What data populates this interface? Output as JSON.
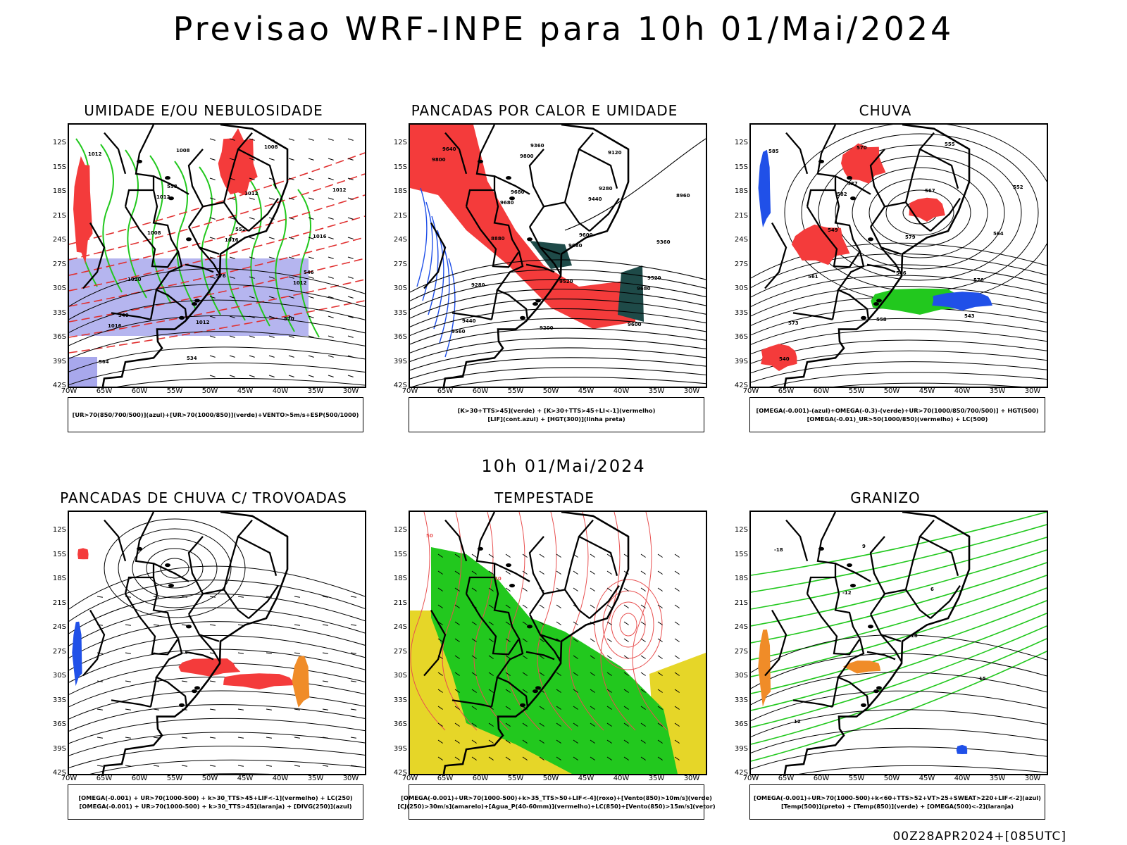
{
  "header": {
    "title": "Previsao WRF-INPE  para 10h 01/Mai/2024"
  },
  "mid_title": "10h 01/Mai/2024",
  "footer_code": "00Z28APR2024+[085UTC]",
  "lat_labels": [
    "12S",
    "15S",
    "18S",
    "21S",
    "24S",
    "27S",
    "30S",
    "33S",
    "36S",
    "39S",
    "42S"
  ],
  "lon_labels": [
    "70W",
    "65W",
    "60W",
    "55W",
    "50W",
    "45W",
    "40W",
    "35W",
    "30W"
  ],
  "panels": [
    {
      "title": "UMIDADE E/OU NEBULOSIDADE",
      "legend": [
        "[UR>70(850/700/500)](azul)+[UR>70(1000/850)](verde)+VENTO>5m/s+ESP(500/1000)"
      ],
      "labels": [
        "1012",
        "1012",
        "1016",
        "1012",
        "1016",
        "1008",
        "1012",
        "1016",
        "1020",
        "1012",
        "1008",
        "1012",
        "1008",
        "576",
        "570",
        "564",
        "558",
        "552",
        "546",
        "540",
        "534"
      ]
    },
    {
      "title": "PANCADAS POR CALOR E UMIDADE",
      "legend": [
        "[K>30+TTS>45](verde) + [K>30+TTS>45+LI<-1](vermelho)",
        "[LIF](cont.azul) + [HGT(300)](linha preta)"
      ],
      "labels": [
        "9800",
        "9680",
        "9680",
        "9680",
        "9560",
        "9800",
        "9440",
        "9360",
        "9280",
        "9200",
        "9120",
        "8960",
        "8880",
        "9520",
        "9600",
        "9640",
        "9680",
        "9600",
        "9520",
        "9440",
        "9360",
        "9280"
      ]
    },
    {
      "title": "CHUVA",
      "legend": [
        "[OMEGA(-0.001)-(azul)+OMEGA(-0.3)-(verde)+UR>70(1000/850/700/500)] + HGT(500)",
        "[OMEGA(-0.01)_UR>50(1000/850)(vermelho) + LC(500)"
      ],
      "labels": [
        "585",
        "582",
        "579",
        "576",
        "573",
        "570",
        "567",
        "564",
        "561",
        "558",
        "555",
        "552",
        "549",
        "546",
        "543",
        "540",
        "537"
      ]
    },
    {
      "title": "PANCADAS DE CHUVA C/ TROVOADAS",
      "legend": [
        "[OMEGA(-0.001) + UR>70(1000-500) + k>30_TTS>45+LIF<-1](vermelho) + LC(250)",
        "[OMEGA(-0.001) + UR>70(1000-500) + k>30_TTS>45](laranja) + [DIVG(250)](azul)"
      ],
      "labels": []
    },
    {
      "title": "TEMPESTADE",
      "legend": [
        "[OMEGA(-0.001)+UR>70(1000-500)+k>35_TTS>50+LIF<-4](roxo)+[Vento(850)>10m/s](verde)",
        "[CJ(250)>30m/s](amarelo)+[Agua_P(40-60mm)](vermelho)+LC(850)+[Vento(850)>15m/s](vetor)"
      ],
      "labels": [
        "50",
        "40"
      ]
    },
    {
      "title": "GRANIZO",
      "legend": [
        "[OMEGA(-0.001)+UR>70(1000-500)+k<60+TTS>52+VT>25+SWEAT>220+LIF<-2](azul)",
        "[Temp(500)](preto) + [Temp(850)](verde) + [OMEGA(500)<-2](laranja)"
      ],
      "labels": [
        "-18",
        "-12",
        "18",
        "15",
        "12",
        "9",
        "6"
      ]
    }
  ],
  "colors": {
    "red": "#f43b3b",
    "green": "#22c81e",
    "blue": "#2050e8",
    "lightblue": "#a8a8ec",
    "orange": "#f08c28",
    "yellow": "#e6d628",
    "darkteal": "#1e4a48",
    "darkgreen": "#0c9a0c"
  }
}
